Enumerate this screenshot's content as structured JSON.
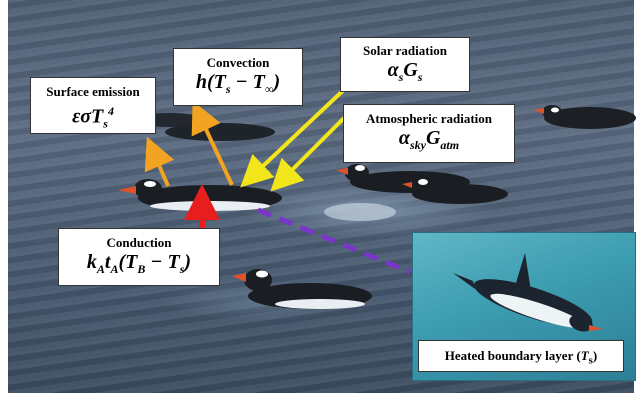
{
  "labels": {
    "surface_emission": {
      "title": "Surface emission",
      "formula_base": "εσT",
      "formula_sup": "4",
      "formula_sub": "s"
    },
    "convection": {
      "title": "Convection",
      "formula": "h(T",
      "formula_sub1": "s",
      "formula_mid": " − T",
      "formula_sub2": "∞",
      "formula_end": ")"
    },
    "solar_radiation": {
      "title": "Solar radiation",
      "formula_a": "α",
      "formula_a_sub": "s",
      "formula_b": "G",
      "formula_b_sub": "s"
    },
    "atmospheric_radiation": {
      "title": "Atmospheric radiation",
      "formula_a": "α",
      "formula_a_sub": "sky",
      "formula_b": "G",
      "formula_b_sub": "atm"
    },
    "conduction": {
      "title": "Conduction",
      "formula_k": "k",
      "formula_k_sub": "A",
      "formula_t": "t",
      "formula_t_sub": "A",
      "formula_rest": "(T",
      "formula_sub1": "B",
      "formula_mid": " − T",
      "formula_sub2": "s",
      "formula_end": ")"
    }
  },
  "inset": {
    "label_text": "Heated boundary layer (",
    "label_var": "T",
    "label_sub": "s",
    "label_end": ")"
  },
  "colors": {
    "heat_arrow_out": "#f2a322",
    "radiation_arrow_in": "#f2e51a",
    "conduction_arrow": "#e81d1d",
    "boundary_path": "#7a36c8"
  }
}
